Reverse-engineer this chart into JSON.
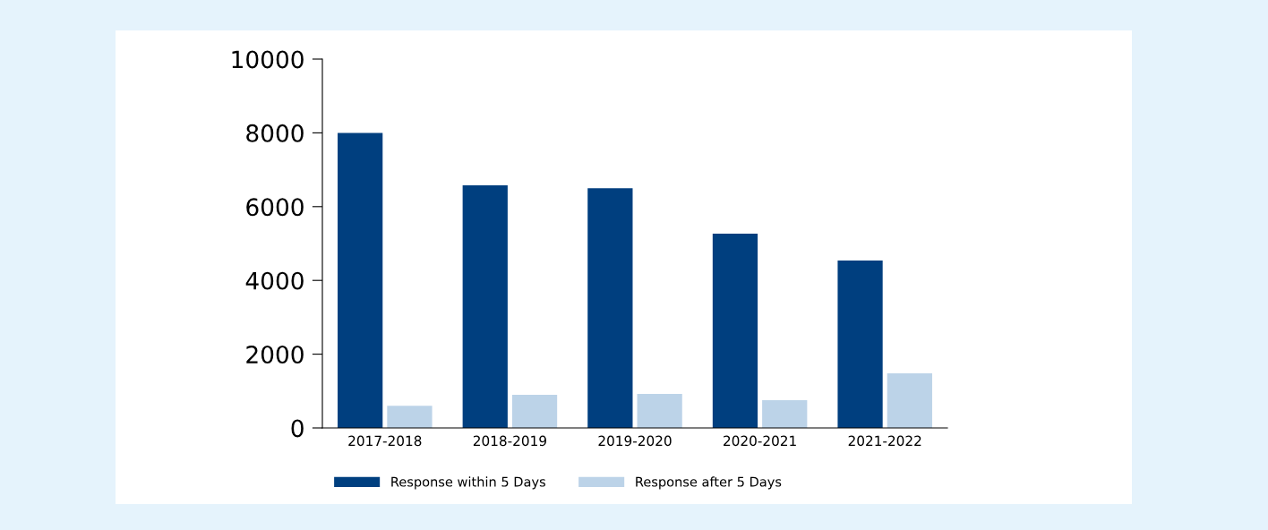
{
  "chart_data": {
    "type": "bar",
    "categories": [
      "2017-2018",
      "2018-2019",
      "2019-2020",
      "2020-2021",
      "2021-2022"
    ],
    "series": [
      {
        "name": "Response within 5 Days",
        "color": "#003f7f",
        "values": [
          8000,
          6580,
          6500,
          5270,
          4540
        ]
      },
      {
        "name": "Response after 5 Days",
        "color": "#bcd3e8",
        "values": [
          600,
          900,
          920,
          750,
          1480
        ]
      }
    ],
    "ylim": [
      0,
      10000
    ],
    "yticks": [
      0,
      2000,
      4000,
      6000,
      8000,
      10000
    ],
    "grid": false,
    "legend": "bottom"
  }
}
